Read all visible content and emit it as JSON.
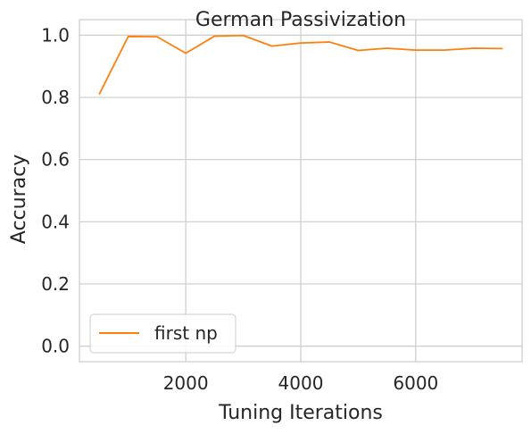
{
  "chart_data": {
    "type": "line",
    "title": "German Passivization",
    "xlabel": "Tuning Iterations",
    "ylabel": "Accuracy",
    "xlim": [
      150,
      7850
    ],
    "ylim": [
      -0.05,
      1.05
    ],
    "xticks": [
      2000,
      4000,
      6000
    ],
    "yticks": [
      0.0,
      0.2,
      0.4,
      0.6,
      0.8,
      1.0
    ],
    "xtick_labels": [
      "2000",
      "4000",
      "6000"
    ],
    "ytick_labels": [
      "0.0",
      "0.2",
      "0.4",
      "0.6",
      "0.8",
      "1.0"
    ],
    "grid": true,
    "legend_position": "lower-left",
    "series": [
      {
        "name": "first np",
        "color": "#ff7f0e",
        "x": [
          500,
          1000,
          1500,
          2000,
          2500,
          3000,
          3500,
          4000,
          4500,
          5000,
          5500,
          6000,
          6500,
          7000,
          7500
        ],
        "y": [
          0.812,
          0.996,
          0.995,
          0.942,
          0.997,
          0.999,
          0.965,
          0.975,
          0.978,
          0.951,
          0.958,
          0.952,
          0.952,
          0.958,
          0.957
        ]
      }
    ]
  }
}
